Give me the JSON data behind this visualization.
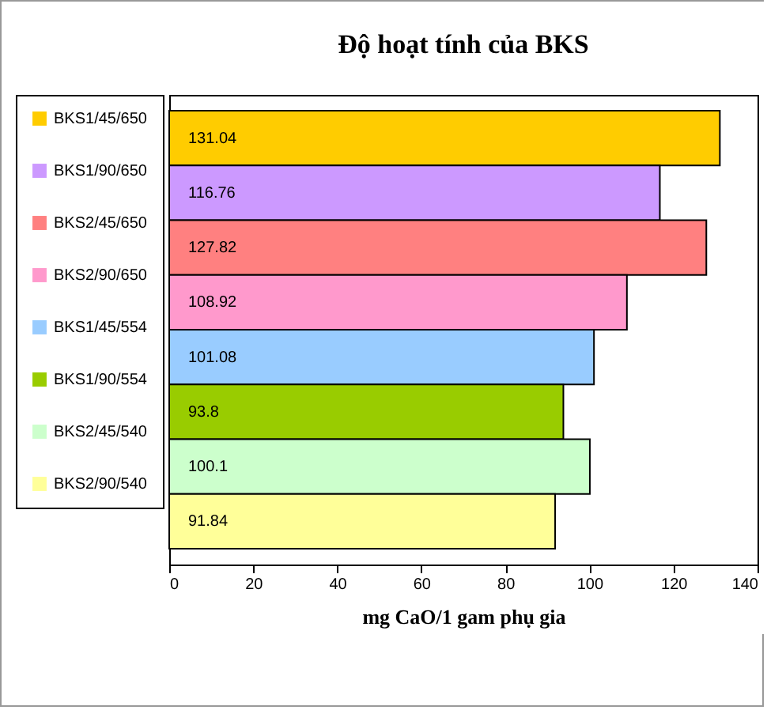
{
  "chart_data": {
    "type": "bar",
    "orientation": "horizontal",
    "title": "Độ hoạt tính của BKS",
    "xlabel": "mg CaO/1 gam phụ gia",
    "categories": [
      null
    ],
    "series": [
      {
        "name": "BKS1/45/650",
        "color": "#ffcc00",
        "values": [
          131.04
        ]
      },
      {
        "name": "BKS1/90/650",
        "color": "#cc99ff",
        "values": [
          116.76
        ]
      },
      {
        "name": "BKS2/45/650",
        "color": "#ff8080",
        "values": [
          127.82
        ]
      },
      {
        "name": "BKS2/90/650",
        "color": "#ff99cc",
        "values": [
          108.92
        ]
      },
      {
        "name": "BKS1/45/554",
        "color": "#99ccff",
        "values": [
          101.08
        ]
      },
      {
        "name": "BKS1/90/554",
        "color": "#99cc00",
        "values": [
          93.8
        ]
      },
      {
        "name": "BKS2/45/540",
        "color": "#ccffcc",
        "values": [
          100.1
        ]
      },
      {
        "name": "BKS2/90/540",
        "color": "#ffff99",
        "values": [
          91.84
        ]
      }
    ],
    "xlim": [
      0,
      140
    ],
    "xticks": [
      0,
      20,
      40,
      60,
      80,
      100,
      120,
      140
    ],
    "data_labels": true,
    "legend": "left"
  }
}
